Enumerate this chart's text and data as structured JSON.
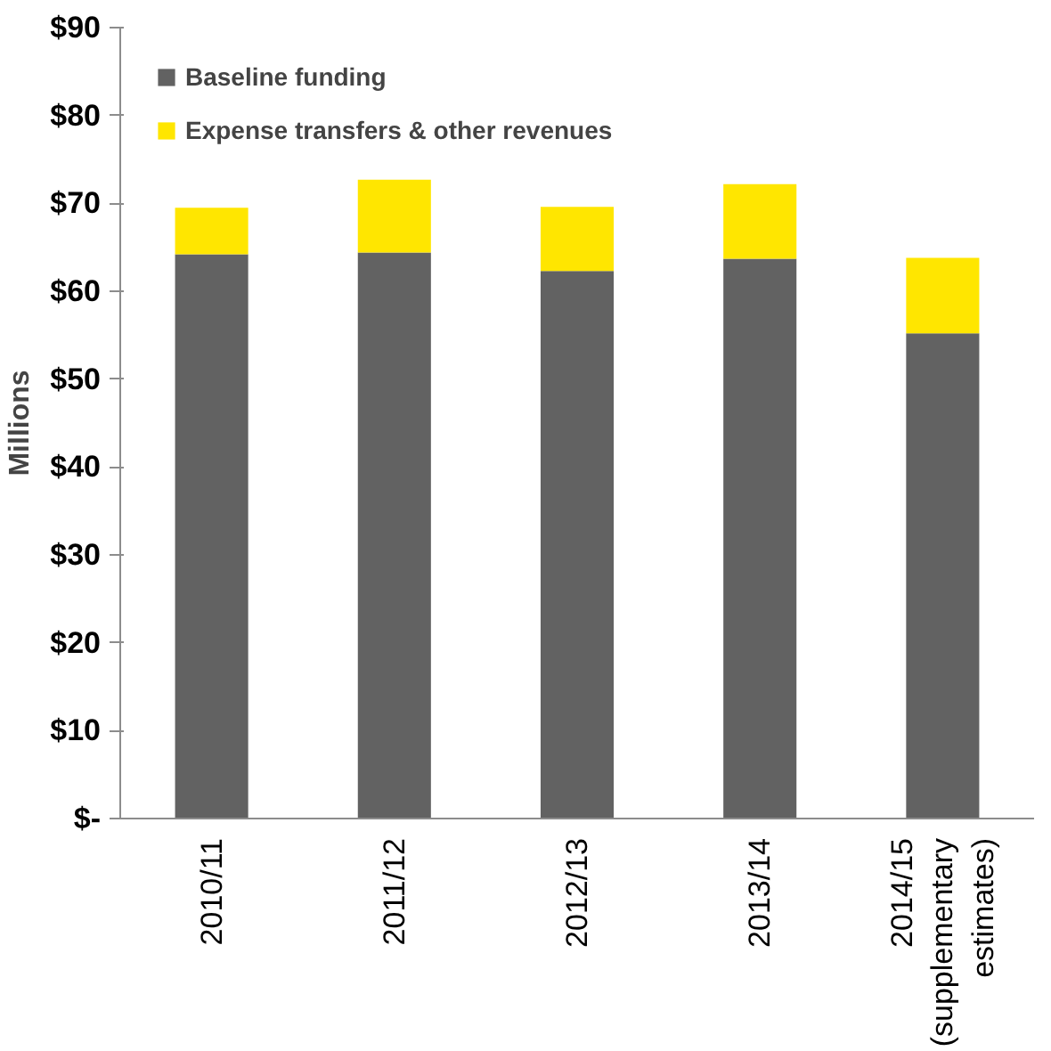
{
  "chart_data": {
    "type": "bar",
    "stacked": true,
    "ylabel": "Millions",
    "categories": [
      "2010/11",
      "2011/12",
      "2012/13",
      "2013/14",
      "2014/15\n(supplementary\nestimates)"
    ],
    "series": [
      {
        "name": "Baseline funding",
        "color": "#626262",
        "values": [
          64.2,
          64.4,
          62.3,
          63.7,
          55.2
        ]
      },
      {
        "name": "Expense transfers & other revenues",
        "color": "#ffe600",
        "values": [
          5.3,
          8.3,
          7.3,
          8.5,
          8.6
        ]
      }
    ],
    "ylim": [
      0,
      90
    ],
    "yticks": [
      {
        "value": 0,
        "label": "$-"
      },
      {
        "value": 10,
        "label": "$10"
      },
      {
        "value": 20,
        "label": "$20"
      },
      {
        "value": 30,
        "label": "$30"
      },
      {
        "value": 40,
        "label": "$40"
      },
      {
        "value": 50,
        "label": "$50"
      },
      {
        "value": 60,
        "label": "$60"
      },
      {
        "value": 70,
        "label": "$70"
      },
      {
        "value": 80,
        "label": "$80"
      },
      {
        "value": 90,
        "label": "$90"
      }
    ],
    "grid": false,
    "legend": "top left"
  }
}
